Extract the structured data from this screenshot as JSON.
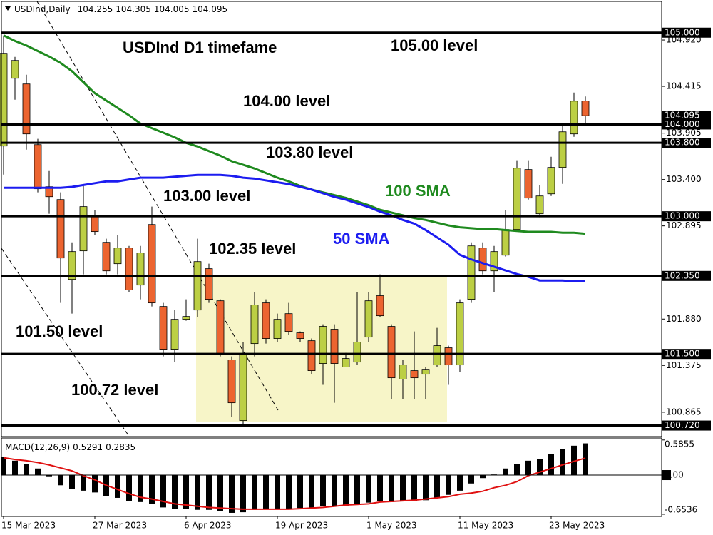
{
  "chart_data": [
    {
      "type": "candlestick",
      "symbol": "USDInd,Daily",
      "categories": [
        "15 Mar 2023",
        null,
        null,
        null,
        null,
        null,
        null,
        null,
        "27 Mar 2023",
        null,
        null,
        null,
        null,
        null,
        null,
        null,
        "6 Apr 2023",
        null,
        null,
        null,
        null,
        null,
        null,
        null,
        "19 Apr 2023",
        null,
        null,
        null,
        null,
        null,
        null,
        null,
        "1 May 2023",
        null,
        null,
        null,
        null,
        null,
        null,
        null,
        "11 May 2023",
        null,
        null,
        null,
        null,
        null,
        null,
        null,
        "23 May 2023",
        null,
        null,
        null
      ],
      "open": [
        103.765,
        104.503,
        104.441,
        103.78,
        103.322,
        103.182,
        102.312,
        102.623,
        103.004,
        102.716,
        102.483,
        102.654,
        102.25,
        102.91,
        102.017,
        101.551,
        101.877,
        101.978,
        102.429,
        102.079,
        101.435,
        100.774,
        101.613,
        102.056,
        101.668,
        101.939,
        101.73,
        101.644,
        101.396,
        101.769,
        101.357,
        101.411,
        101.683,
        102.134,
        101.8,
        101.225,
        101.318,
        101.279,
        101.38,
        101.567,
        101.38,
        102.095,
        102.654,
        102.405,
        102.576,
        102.856,
        103.509,
        103.027,
        103.244,
        103.532,
        103.897,
        104.255
      ],
      "high": [
        104.969,
        104.736,
        104.542,
        103.843,
        103.493,
        103.26,
        102.716,
        103.338,
        103.066,
        102.755,
        102.794,
        102.677,
        102.677,
        103.105,
        102.056,
        101.978,
        102.095,
        102.755,
        102.483,
        102.095,
        101.473,
        101.629,
        102.172,
        102.095,
        101.939,
        102.056,
        101.745,
        101.668,
        101.823,
        101.823,
        101.512,
        102.172,
        102.172,
        102.367,
        101.823,
        101.435,
        101.745,
        101.357,
        101.784,
        101.59,
        102.095,
        102.716,
        102.716,
        102.677,
        103.066,
        103.61,
        103.61,
        103.338,
        103.648,
        103.998,
        104.347,
        104.305
      ],
      "low": [
        103.454,
        104.27,
        103.726,
        103.26,
        103.027,
        102.056,
        101.939,
        102.367,
        102.794,
        102.367,
        102.367,
        102.172,
        102.095,
        102.017,
        101.473,
        101.411,
        101.862,
        101.901,
        102.056,
        101.473,
        100.813,
        100.735,
        101.473,
        101.613,
        101.629,
        101.706,
        101.629,
        101.279,
        101.163,
        100.968,
        101.357,
        101.38,
        101.629,
        101.901,
        101.007,
        101.007,
        101.007,
        101.007,
        101.357,
        101.163,
        101.303,
        102.056,
        102.367,
        102.172,
        102.561,
        102.833,
        103.182,
        102.988,
        103.221,
        103.353,
        103.866,
        104.005
      ],
      "close": [
        104.775,
        104.697,
        103.897,
        103.299,
        103.213,
        102.545,
        102.615,
        103.105,
        102.833,
        102.405,
        102.654,
        102.196,
        102.6,
        102.056,
        101.551,
        101.877,
        101.908,
        102.506,
        102.095,
        101.497,
        100.968,
        101.497,
        102.033,
        101.668,
        101.877,
        101.745,
        101.668,
        101.318,
        101.8,
        101.396,
        101.45,
        101.629,
        102.079,
        101.916,
        101.24,
        101.38,
        101.24,
        101.333,
        101.59,
        101.38,
        102.056,
        102.677,
        102.405,
        102.615,
        102.856,
        103.524,
        103.198,
        103.221,
        103.532,
        103.92,
        104.254,
        104.095
      ],
      "up_color": "#bccf44",
      "down_color": "#ec6430",
      "series": [
        {
          "name": "100 SMA",
          "color": "#1f8a1f",
          "values": [
            104.97,
            104.91,
            104.86,
            104.8,
            104.74,
            104.67,
            104.58,
            104.46,
            104.34,
            104.26,
            104.18,
            104.1,
            104.01,
            103.96,
            103.91,
            103.86,
            103.8,
            103.76,
            103.71,
            103.66,
            103.6,
            103.56,
            103.52,
            103.47,
            103.42,
            103.38,
            103.33,
            103.29,
            103.26,
            103.23,
            103.2,
            103.16,
            103.12,
            103.07,
            103.04,
            103.01,
            102.98,
            102.96,
            102.93,
            102.9,
            102.88,
            102.87,
            102.86,
            102.86,
            102.85,
            102.84,
            102.83,
            102.83,
            102.83,
            102.82,
            102.82,
            102.81
          ]
        },
        {
          "name": "50 SMA",
          "color": "#1c1cf0",
          "values": [
            103.31,
            103.31,
            103.31,
            103.31,
            103.31,
            103.31,
            103.32,
            103.34,
            103.36,
            103.38,
            103.38,
            103.4,
            103.42,
            103.42,
            103.42,
            103.43,
            103.44,
            103.45,
            103.45,
            103.45,
            103.44,
            103.42,
            103.41,
            103.39,
            103.37,
            103.35,
            103.32,
            103.29,
            103.25,
            103.21,
            103.18,
            103.14,
            103.1,
            103.05,
            103.01,
            102.96,
            102.92,
            102.85,
            102.77,
            102.69,
            102.58,
            102.53,
            102.49,
            102.45,
            102.41,
            102.37,
            102.34,
            102.3,
            102.3,
            102.3,
            102.29,
            102.29
          ]
        }
      ],
      "ylim": [
        100.6,
        105.34
      ],
      "yticks": [
        {
          "value": 104.92,
          "label": "104.920"
        },
        104.415,
        103.905,
        {
          "value": 103.4,
          "label": "103.400"
        },
        102.895,
        {
          "value": 101.88,
          "label": "101.880"
        },
        101.375,
        100.865
      ],
      "levels": [
        {
          "value": 105,
          "label": "105.000"
        },
        {
          "value": 104,
          "label": "104.000"
        },
        {
          "value": 103.8,
          "label": "103.800"
        },
        {
          "value": 103,
          "label": "103.000"
        },
        {
          "value": 102.35,
          "label": "102.350"
        },
        {
          "value": 101.5,
          "label": "101.500"
        },
        {
          "value": 100.72,
          "label": "100.720"
        }
      ],
      "annotations": [
        "USDInd D1 timefame",
        "105.00 level",
        "104.00 level",
        "103.80 level",
        "103.00 level",
        "102.35 level",
        "101.50 level",
        "100.72 level"
      ]
    },
    {
      "type": "macd",
      "title": "MACD(12,26,9)",
      "histogram": {
        "color": "#000000",
        "values": [
          0.3,
          0.24,
          0.19,
          0.11,
          -0.02,
          -0.17,
          -0.23,
          -0.26,
          -0.29,
          -0.35,
          -0.38,
          -0.43,
          -0.45,
          -0.48,
          -0.54,
          -0.56,
          -0.56,
          -0.58,
          -0.58,
          -0.6,
          -0.63,
          -0.62,
          -0.58,
          -0.57,
          -0.56,
          -0.56,
          -0.55,
          -0.56,
          -0.52,
          -0.52,
          -0.51,
          -0.49,
          -0.46,
          -0.44,
          -0.45,
          -0.44,
          -0.43,
          -0.42,
          -0.38,
          -0.33,
          -0.26,
          -0.14,
          -0.05,
          0.01,
          0.11,
          0.18,
          0.24,
          0.27,
          0.35,
          0.43,
          0.49,
          0.5291
        ]
      },
      "signal": {
        "color": "#e01010",
        "values": [
          0.29,
          0.26,
          0.24,
          0.21,
          0.17,
          0.12,
          0.07,
          -0.01,
          -0.08,
          -0.17,
          -0.24,
          -0.31,
          -0.37,
          -0.4,
          -0.44,
          -0.48,
          -0.5,
          -0.52,
          -0.54,
          -0.55,
          -0.56,
          -0.57,
          -0.57,
          -0.57,
          -0.57,
          -0.57,
          -0.56,
          -0.55,
          -0.54,
          -0.52,
          -0.5,
          -0.49,
          -0.48,
          -0.45,
          -0.44,
          -0.43,
          -0.42,
          -0.4,
          -0.38,
          -0.36,
          -0.32,
          -0.3,
          -0.27,
          -0.21,
          -0.17,
          -0.11,
          -0.01,
          0.05,
          0.11,
          0.17,
          0.23,
          0.2835
        ]
      },
      "ylim": [
        -0.69,
        0.619
      ],
      "yticks": [
        0.5855,
        {
          "value": 0,
          "label": "0.00"
        },
        -0.6536
      ]
    }
  ]
}
